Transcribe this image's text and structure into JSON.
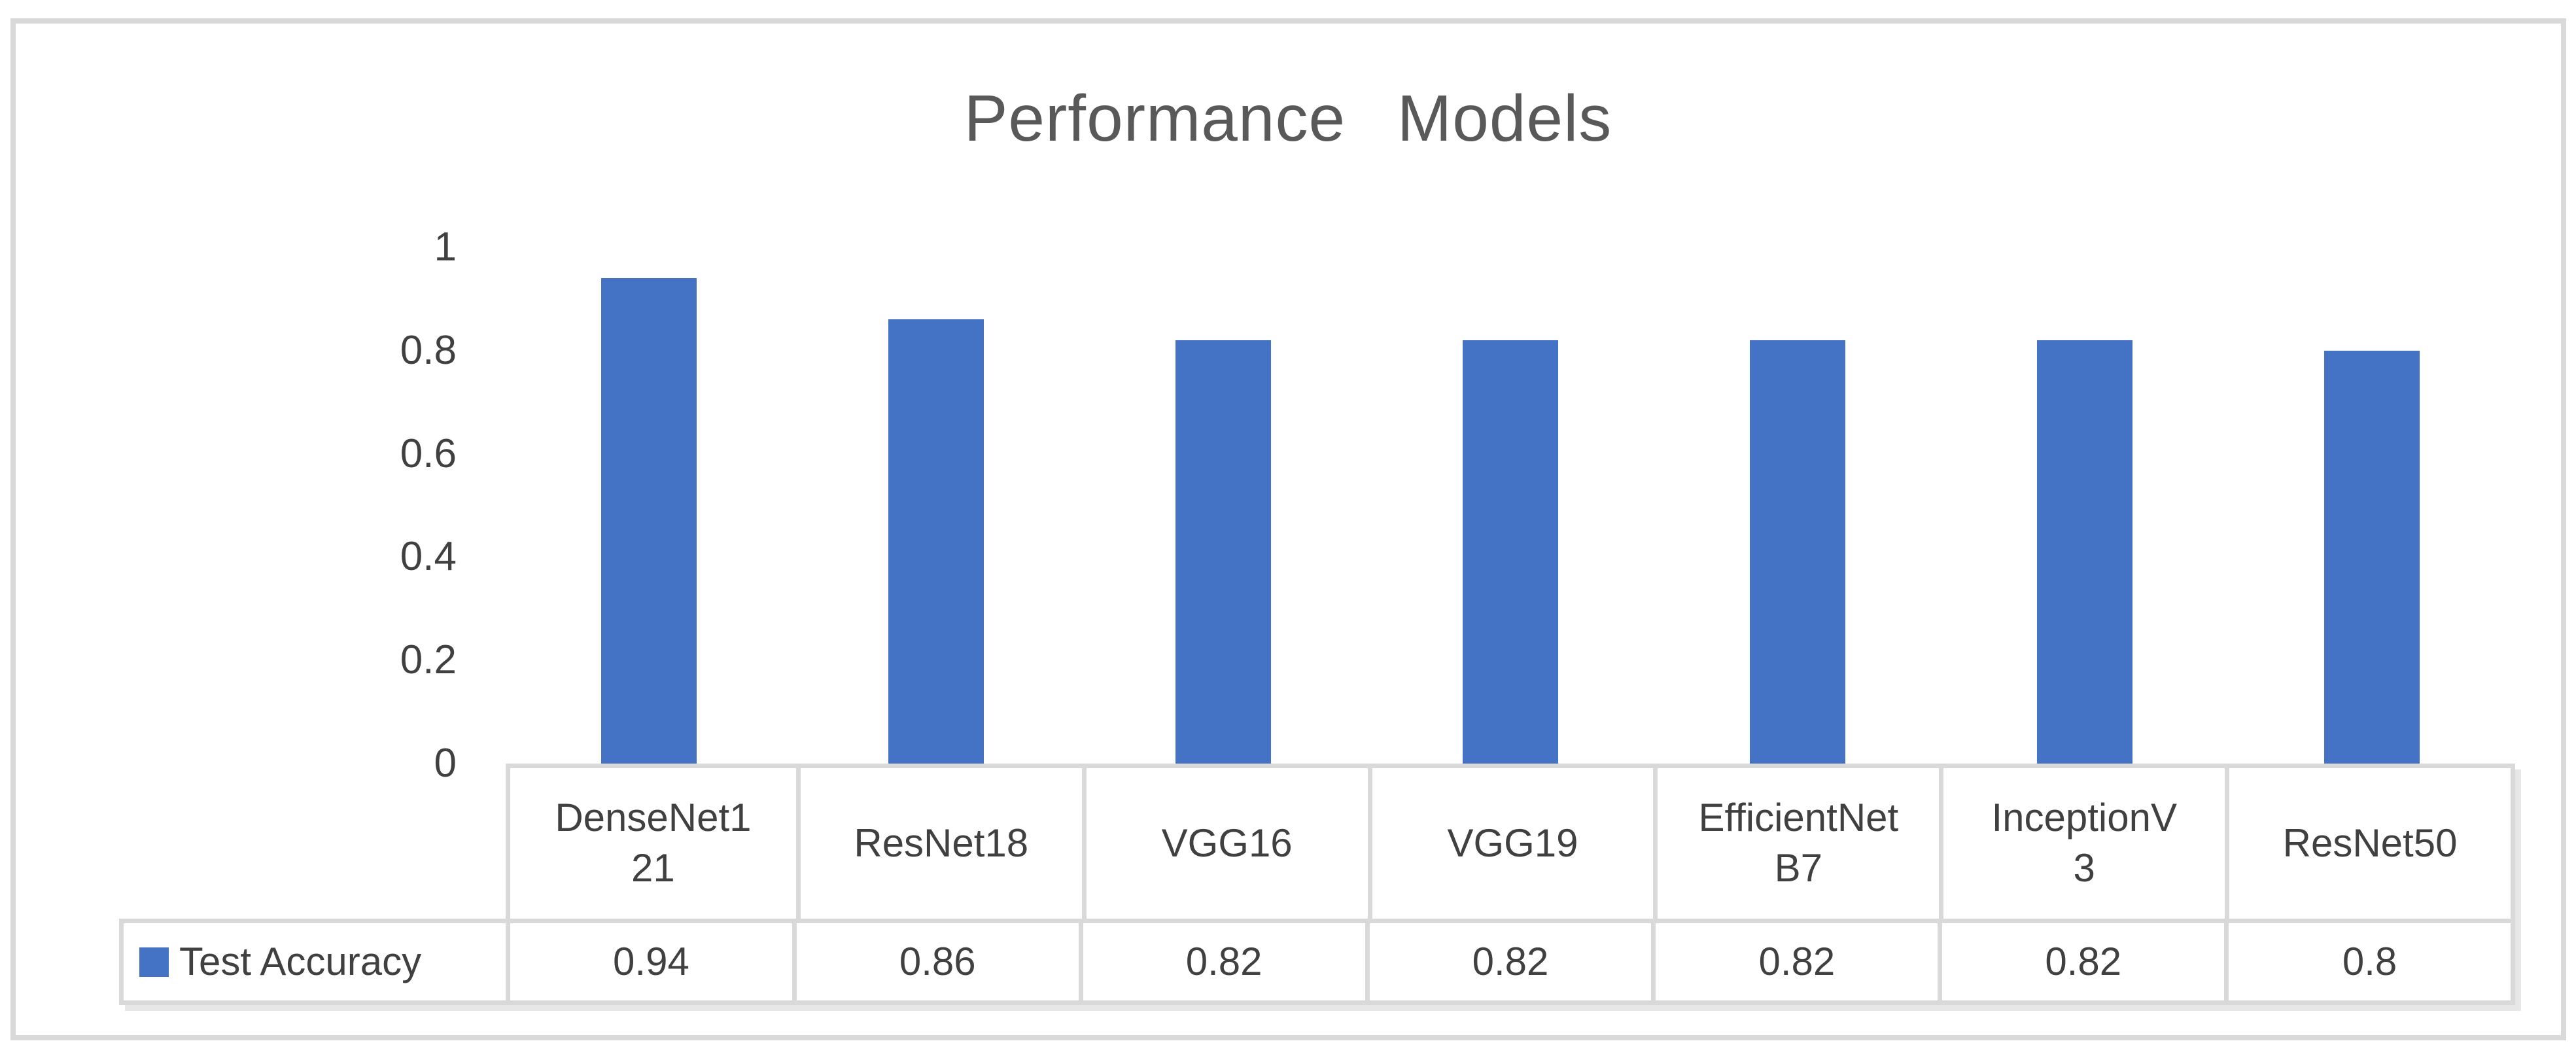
{
  "chart": {
    "title": "Performance Models",
    "legend": {
      "label": "Test Accuracy",
      "swatch_color": "#4472C4"
    },
    "frame_border_color": "#D9D9D9",
    "title_color": "#595959",
    "text_color": "#404040"
  },
  "chart_data": {
    "type": "bar",
    "title": "Performance Models",
    "categories": [
      "DenseNet121",
      "ResNet18",
      "VGG16",
      "VGG19",
      "EfficientNetB7",
      "InceptionV3",
      "ResNet50"
    ],
    "categories_display": [
      [
        "DenseNet1",
        "21"
      ],
      [
        "ResNet18"
      ],
      [
        "VGG16"
      ],
      [
        "VGG19"
      ],
      [
        "EfficientNet",
        "B7"
      ],
      [
        "InceptionV",
        "3"
      ],
      [
        "ResNet50"
      ]
    ],
    "series": [
      {
        "name": "Test Accuracy",
        "values": [
          0.94,
          0.86,
          0.82,
          0.82,
          0.82,
          0.82,
          0.8
        ]
      }
    ],
    "value_labels": [
      "0.94",
      "0.86",
      "0.82",
      "0.82",
      "0.82",
      "0.82",
      "0.8"
    ],
    "xlabel": "",
    "ylabel": "",
    "ylim": [
      0,
      1
    ],
    "yticks": [
      1,
      0.8,
      0.6,
      0.4,
      0.2,
      0
    ],
    "ytick_labels": [
      "1",
      "0.8",
      "0.6",
      "0.4",
      "0.2",
      "0"
    ],
    "grid": false,
    "legend_position": "bottom-table",
    "bar_color": "#4472C4"
  }
}
